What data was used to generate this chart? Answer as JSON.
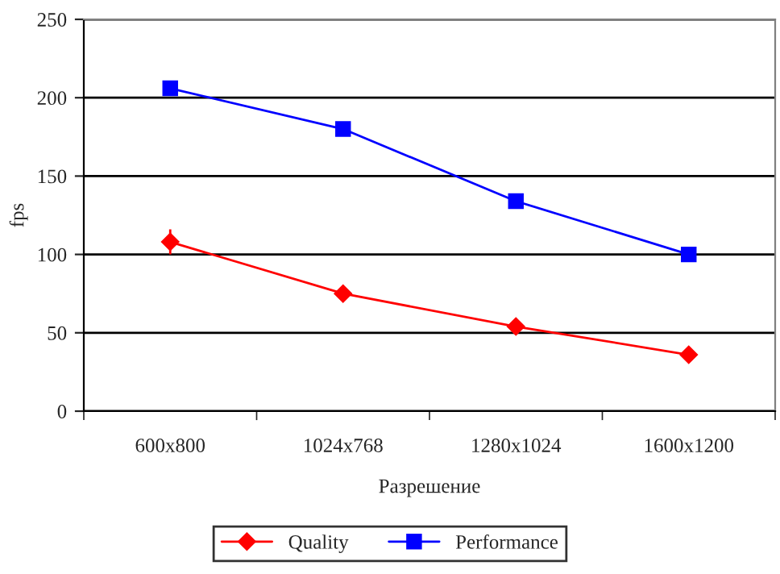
{
  "chart_data": {
    "type": "line",
    "xlabel": "Разрешение",
    "ylabel": "fps",
    "categories": [
      "600x800",
      "1024x768",
      "1280x1024",
      "1600x1200"
    ],
    "series": [
      {
        "name": "Quality",
        "color": "#ff0000",
        "values": [
          108,
          75,
          54,
          36
        ],
        "marker": "diamond",
        "errors": [
          8,
          null,
          2,
          null
        ]
      },
      {
        "name": "Performance",
        "color": "#0000ff",
        "values": [
          206,
          180,
          134,
          100
        ],
        "marker": "square"
      }
    ],
    "ylim": [
      0,
      250
    ],
    "yticks": [
      0,
      50,
      100,
      150,
      200,
      250
    ],
    "grid": "y",
    "legend": "bottom",
    "line_style": "solid"
  }
}
